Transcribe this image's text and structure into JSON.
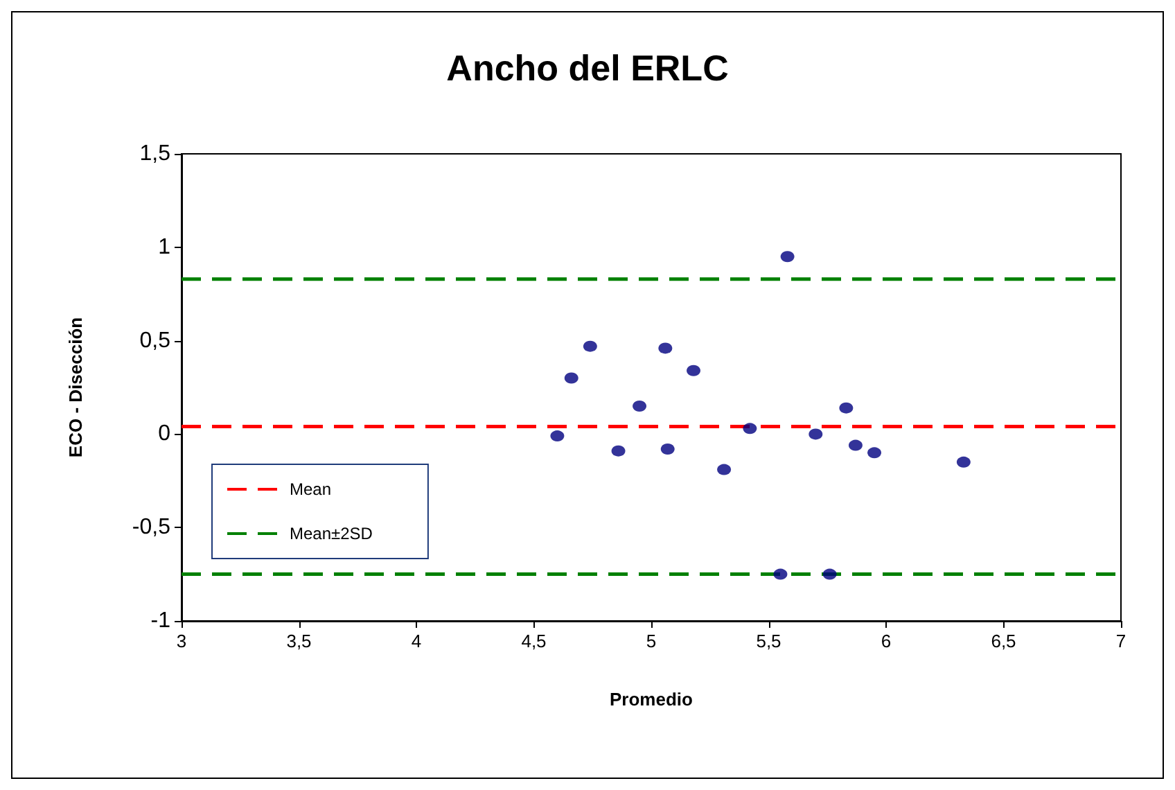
{
  "chart_data": {
    "type": "scatter",
    "title": "Ancho del ERLC",
    "xlabel": "Promedio",
    "ylabel": "ECO - Disección",
    "x": [
      4.6,
      4.66,
      4.74,
      4.85,
      4.86,
      4.95,
      5.06,
      5.07,
      5.18,
      5.31,
      5.42,
      5.55,
      5.58,
      5.7,
      5.76,
      5.83,
      5.87,
      5.95,
      6.33
    ],
    "series": [
      {
        "color": "#000080",
        "values": [
          -0.01,
          0.3,
          0.47,
          null,
          -0.09,
          0.15,
          0.46,
          -0.08,
          0.34,
          -0.19,
          0.03,
          -0.75,
          0.95,
          0.0,
          -0.75,
          0.14,
          -0.06,
          -0.1,
          -0.15
        ]
      }
    ],
    "marker": "circle",
    "xlim": [
      3,
      7
    ],
    "xticks": [
      3,
      {
        "value": 3.5,
        "label": "3,5"
      },
      4,
      {
        "value": 4.5,
        "label": "4,5"
      },
      5,
      {
        "value": 5.5,
        "label": "5,5"
      },
      6,
      {
        "value": 6.5,
        "label": "6,5"
      },
      7
    ],
    "ylim": [
      -1,
      1.5
    ],
    "yticks": [
      -1,
      {
        "value": -0.5,
        "label": "-0,5"
      },
      0,
      {
        "value": 0.5,
        "label": "0,5"
      },
      1,
      {
        "value": 1.5,
        "label": "1,5"
      }
    ],
    "ref_lines": [
      {
        "axis": "y",
        "value": 0.04,
        "label": "Mean",
        "color": "#ff0000",
        "line_style": "dashed"
      },
      {
        "axis": "y",
        "value": 0.83,
        "label": "Mean±2SD",
        "color": "#008000",
        "line_style": "dashed"
      },
      {
        "axis": "y",
        "value": -0.75,
        "color": "#008000",
        "line_style": "dashed"
      }
    ],
    "legend": "bottom left",
    "grid": false
  }
}
